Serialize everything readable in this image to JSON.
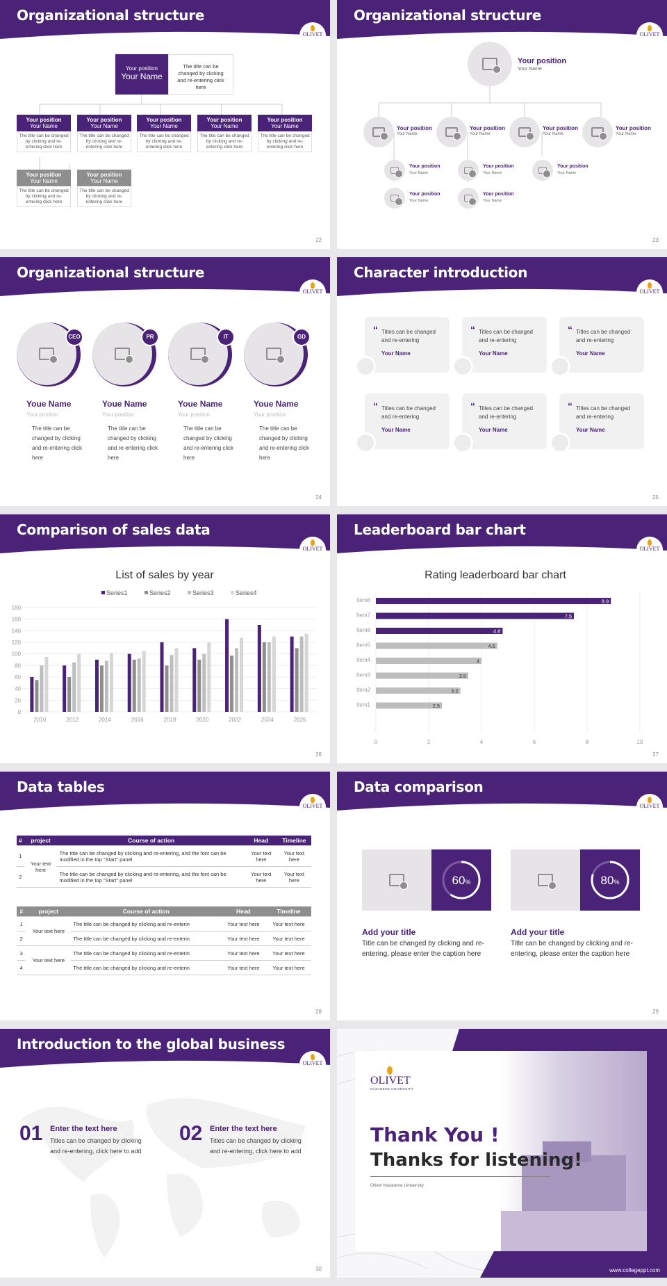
{
  "colors": {
    "brand": "#4a2378",
    "gray": "#bdbdbd",
    "light": "#f1f1f1"
  },
  "logo": {
    "text": "OLIVET"
  },
  "s22": {
    "title": "Organizational structure",
    "page": "22",
    "top": {
      "position": "Your position",
      "name": "Your Name",
      "desc": "The title can be changed by clicking and re-entering click here"
    },
    "boxes": [
      {
        "position": "Your position",
        "name": "Your Name",
        "desc": "The title can be changed by clicking and re-entering click here"
      },
      {
        "position": "Your position",
        "name": "Your Name",
        "desc": "The title can be changed by clicking and re-entering click here"
      },
      {
        "position": "Your position",
        "name": "Your Name",
        "desc": "The title can be changed by clicking and re-entering click here"
      },
      {
        "position": "Your position",
        "name": "Your Name",
        "desc": "The title can be changed by clicking and re-entering click here"
      },
      {
        "position": "Your position",
        "name": "Your Name",
        "desc": "The title can be changed by clicking and re-entering click here"
      },
      {
        "position": "Your position",
        "name": "Your Name",
        "desc": "The title can be changed by clicking and re-entering click here"
      },
      {
        "position": "Your position",
        "name": "Your Name",
        "desc": "The title can be changed by clicking and re-entering click here"
      }
    ]
  },
  "s23": {
    "title": "Organizational structure",
    "page": "23",
    "top": {
      "position": "Your position",
      "name": "Your Name"
    },
    "node": {
      "position": "Your position",
      "name": "Your Name"
    }
  },
  "s24": {
    "title": "Organizational structure",
    "page": "24",
    "people": [
      {
        "badge": "CEO",
        "name": "Youe Name",
        "position": "Your position",
        "desc": "The title can be changed by clicking and re-entering click here"
      },
      {
        "badge": "PR",
        "name": "Youe Name",
        "position": "Your position",
        "desc": "The title can be changed by clicking and re-entering click here"
      },
      {
        "badge": "IT",
        "name": "Youe Name",
        "position": "Your position",
        "desc": "The title can be changed by clicking and re-entering click here"
      },
      {
        "badge": "GD",
        "name": "Youe Name",
        "position": "Your position",
        "desc": "The title can be changed by clicking and re-entering click here"
      }
    ]
  },
  "s25": {
    "title": "Character introduction",
    "page": "25",
    "card": {
      "text": "Titles can be changed and re-entering",
      "name": "Your Name"
    }
  },
  "s26": {
    "title": "Comparison of sales data",
    "page": "26"
  },
  "s27": {
    "title": "Leaderboard bar chart",
    "page": "27"
  },
  "chart_data": [
    {
      "type": "bar",
      "title": "List of sales by year",
      "categories": [
        "2010",
        "2012",
        "2014",
        "2016",
        "2018",
        "2020",
        "2022",
        "2024",
        "2026"
      ],
      "ylim": [
        0,
        180
      ],
      "yticks": [
        0,
        20,
        40,
        60,
        80,
        100,
        120,
        140,
        160,
        180
      ],
      "legend": "top",
      "grid": true,
      "series": [
        {
          "name": "Series1",
          "color": "#4a2378",
          "values": [
            60,
            80,
            90,
            100,
            120,
            110,
            160,
            150,
            130
          ]
        },
        {
          "name": "Series2",
          "color": "#8e8e8e",
          "values": [
            55,
            60,
            80,
            90,
            80,
            90,
            97,
            120,
            110
          ]
        },
        {
          "name": "Series3",
          "color": "#bdbdbd",
          "values": [
            80,
            85,
            88,
            92,
            98,
            100,
            110,
            120,
            130
          ]
        },
        {
          "name": "Series4",
          "color": "#d6d6d6",
          "values": [
            95,
            100,
            102,
            105,
            110,
            120,
            128,
            130,
            135
          ]
        }
      ]
    },
    {
      "type": "bar",
      "orientation": "horizontal",
      "title": "Rating leaderboard bar chart",
      "categories": [
        "Item8",
        "Item7",
        "Item6",
        "Item5",
        "Item4",
        "Item3",
        "Item2",
        "Item1"
      ],
      "values": [
        8.9,
        7.5,
        4.8,
        4.6,
        4,
        3.5,
        3.2,
        2.5
      ],
      "xlim": [
        0,
        10
      ],
      "xticks": [
        0,
        2,
        4,
        6,
        8,
        10
      ],
      "grid": true
    }
  ],
  "s28": {
    "title": "Data tables",
    "page": "28",
    "headers": [
      "#",
      "project",
      "Course of action",
      "Head",
      "Timeline"
    ],
    "t1": {
      "project": "Your text here",
      "rows": [
        {
          "n": "1",
          "action": "The title can be changed by clicking and re-entering, and the font can be modified in the top \"Start\" panel",
          "head": "Your text here",
          "time": "Your text here"
        },
        {
          "n": "2",
          "action": "The title can be changed by clicking and re-entering, and the font can be modified in the top \"Start\" panel",
          "head": "Your text here",
          "time": "Your text here"
        }
      ]
    },
    "t2": {
      "projects": [
        "Your text here",
        "Your text here"
      ],
      "rows": [
        {
          "n": "1",
          "action": "The title can be changed by clicking and re-enterin",
          "head": "Your text here",
          "time": "Your text here"
        },
        {
          "n": "2",
          "action": "The title can be changed by clicking and re-enterin",
          "head": "Your text here",
          "time": "Your text here"
        },
        {
          "n": "3",
          "action": "The title can be changed by clicking and re-enterin",
          "head": "Your text here",
          "time": "Your text here"
        },
        {
          "n": "4",
          "action": "The title can be changed by clicking and re-enterin",
          "head": "Your text here",
          "time": "Your text here"
        }
      ]
    }
  },
  "s29": {
    "title": "Data comparison",
    "page": "29",
    "items": [
      {
        "percent": 60,
        "value": "60",
        "unit": "%",
        "title": "Add your title",
        "desc": "Title can be changed by clicking and re-entering, please enter the caption here"
      },
      {
        "percent": 80,
        "value": "80",
        "unit": "%",
        "title": "Add your title",
        "desc": "Title can be changed by clicking and re-entering, please enter the caption here"
      }
    ]
  },
  "s30": {
    "title": "Introduction to the global business",
    "page": "30",
    "items": [
      {
        "num": "01",
        "head": "Enter the text here",
        "desc": "Titles can be changed by clicking and re-entering, click here to add"
      },
      {
        "num": "02",
        "head": "Enter the text here",
        "desc": "Titles can be changed by clicking and re-entering, click here to add"
      }
    ]
  },
  "s31": {
    "logo": "OLIVET",
    "logo_sub": "NAZARENE UNIVERSITY",
    "line1": "Thank You !",
    "line2": "Thanks for listening!",
    "uni": "Olivet Nazarene University",
    "url": "www.collegeppt.com"
  }
}
